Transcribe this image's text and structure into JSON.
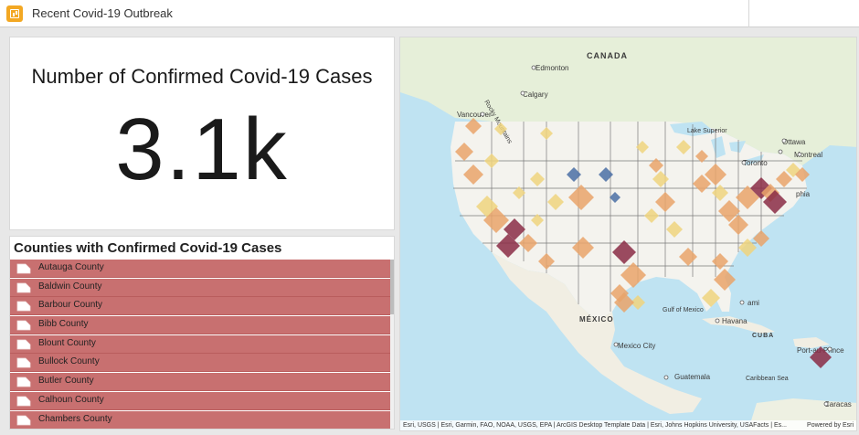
{
  "app": {
    "title": "Recent Covid-19 Outbreak"
  },
  "indicator": {
    "title": "Number of Confirmed Covid-19 Cases",
    "value": "3.1k"
  },
  "list": {
    "title": "Counties with Confirmed Covid-19 Cases",
    "items": [
      "Autauga County",
      "Baldwin County",
      "Barbour County",
      "Bibb County",
      "Blount County",
      "Bullock County",
      "Butler County",
      "Calhoun County",
      "Chambers County"
    ]
  },
  "map": {
    "labels": {
      "canada": "CANADA",
      "edmonton": "Edmonton",
      "calgary": "Calgary",
      "vancouver": "Vancouver",
      "rocky": "Rocky Mountains",
      "lake_superior": "Lake Superior",
      "ottawa": "Ottawa",
      "montreal": "Montreal",
      "toronto": "Toronto",
      "phia": "phia",
      "mexico": "MÉXICO",
      "mexico_city": "Mexico City",
      "gulf": "Gulf of Mexico",
      "havana": "Havana",
      "cuba": "CUBA",
      "guatemala": "Guatemala",
      "port_au_prince": "Port-au-Prince",
      "caribbean": "Caribbean Sea",
      "caracas": "Caracas",
      "miami": "ami"
    },
    "attribution": "Esri, USGS | Esri, Garmin, FAO, NOAA, USGS, EPA | ArcGIS Desktop Template Data | Esri, Johns Hopkins University, USAFacts | Es...",
    "powered": "Powered by Esri",
    "colors": {
      "water": "#bfe3f2",
      "land": "#f4f3ee",
      "dark_red": "#8a2c45",
      "orange": "#e9a36a",
      "yellow": "#eed47e",
      "blue": "#4a6fa5"
    }
  },
  "colors": {
    "list_item": "#c87070",
    "accent": "#f3a823"
  }
}
